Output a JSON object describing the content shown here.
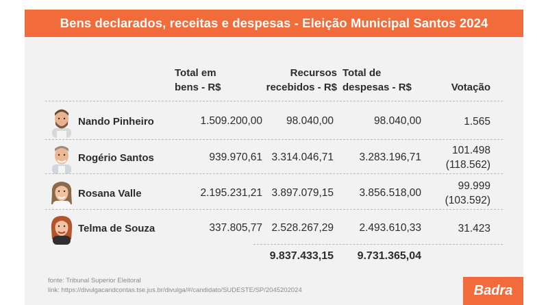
{
  "header": {
    "title": "Bens declarados, receitas e despesas - Eleição Municipal Santos 2024"
  },
  "columns": {
    "bens": [
      "Total em",
      "bens - R$"
    ],
    "recursos": [
      "Recursos",
      "recebidos - R$"
    ],
    "despesas": [
      "Total de",
      "despesas - R$"
    ],
    "votacao": "Votação"
  },
  "rows": [
    {
      "name": "Nando Pinheiro",
      "bens": "1.509.200,00",
      "recursos": "98.040,00",
      "despesas": "98.040,00",
      "votacao": "1.565",
      "votacao_extra": "",
      "avatar_icon": "man-portrait-icon"
    },
    {
      "name": "Rogério Santos",
      "bens": "939.970,61",
      "recursos": "3.314.046,71",
      "despesas": "3.283.196,71",
      "votacao": "101.498",
      "votacao_extra": "(118.562)",
      "avatar_icon": "man-portrait-icon"
    },
    {
      "name": "Rosana Valle",
      "bens": "2.195.231,21",
      "recursos": "3.897.079,15",
      "despesas": "3.856.518,00",
      "votacao": "99.999",
      "votacao_extra": "(103.592)",
      "avatar_icon": "woman-portrait-icon"
    },
    {
      "name": "Telma de Souza",
      "bens": "337.805,77",
      "recursos": "2.528.267,29",
      "despesas": "2.493.610,33",
      "votacao": "31.423",
      "votacao_extra": "",
      "avatar_icon": "woman-portrait-icon"
    }
  ],
  "totals": {
    "recursos": "9.837.433,15",
    "despesas": "9.731.365,04"
  },
  "footer": {
    "source": "fonte: Tribunal Superior Eleitoral",
    "link": "link: https://divulgacandcontas.tse.jus.br/divulga/#/candidato/SUDESTE/SP/2045202024"
  },
  "logo": {
    "text": "Badra"
  },
  "colors": {
    "accent": "#f26b3a",
    "background": "#f2f2f2",
    "text": "#2b2b2b"
  }
}
